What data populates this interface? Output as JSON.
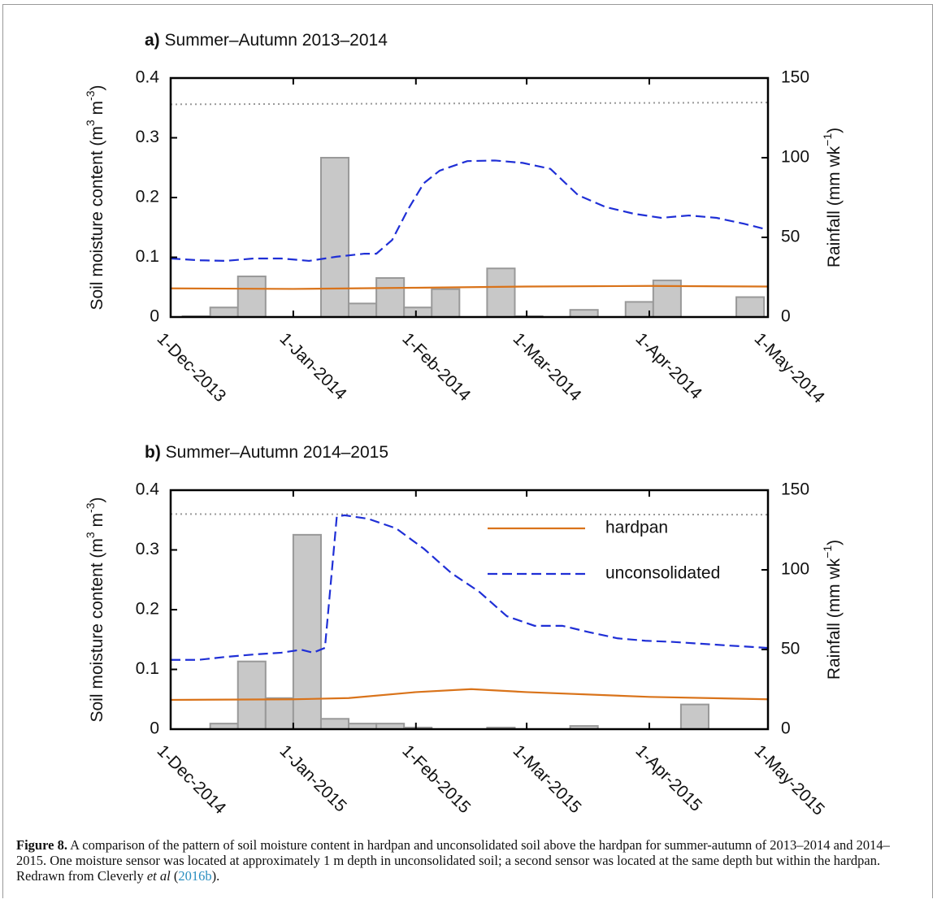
{
  "chart_data": [
    {
      "type": "combo",
      "panel": "a)",
      "title": "Summer–Autumn 2013–2014",
      "ylabel": [
        "Soil moisture content (m",
        "3",
        " m",
        "-3",
        ")"
      ],
      "y2label": [
        "Rainfall (mm wk",
        "−1",
        ")"
      ],
      "xlim": [
        "2013-12-01",
        "2014-05-01"
      ],
      "xticks": [
        {
          "value": "2013-12-01",
          "label": "1-Dec-2013"
        },
        {
          "value": "2014-01-01",
          "label": "1-Jan-2014"
        },
        {
          "value": "2014-02-01",
          "label": "1-Feb-2014"
        },
        {
          "value": "2014-03-01",
          "label": "1-Mar-2014"
        },
        {
          "value": "2014-04-01",
          "label": "1-Apr-2014"
        },
        {
          "value": "2014-05-01",
          "label": "1-May-2014"
        }
      ],
      "ylim": [
        0,
        0.4
      ],
      "yticks": [
        0,
        0.1,
        0.2,
        0.3,
        0.4
      ],
      "y2lim": [
        0,
        150
      ],
      "y2ticks": [
        0,
        50,
        100,
        150
      ],
      "rainfall": {
        "axis": "y2",
        "color": "#c8c8c8",
        "bins": [
          "2013-12-04",
          "2013-12-11",
          "2013-12-18",
          "2013-12-25",
          "2014-01-01",
          "2014-01-08",
          "2014-01-15",
          "2014-01-22",
          "2014-01-29",
          "2014-02-05",
          "2014-02-12",
          "2014-02-19",
          "2014-02-26",
          "2014-03-05",
          "2014-03-12",
          "2014-03-19",
          "2014-03-26",
          "2014-04-02",
          "2014-04-09",
          "2014-04-16",
          "2014-04-23",
          "2014-04-30"
        ],
        "values": [
          0.5,
          6,
          25.5,
          0,
          0,
          100,
          8.5,
          24.5,
          6,
          17.5,
          0,
          30.5,
          0.5,
          0,
          4.5,
          0,
          9.5,
          23,
          0,
          0,
          12.5
        ]
      },
      "reference_line": {
        "color": "#999999",
        "x": [
          "2013-12-01",
          "2014-05-01"
        ],
        "values": [
          0.356,
          0.359
        ]
      },
      "series": [
        {
          "color": "#d9731a",
          "x": [
            "2013-12-01",
            "2014-01-01",
            "2014-02-01",
            "2014-03-01",
            "2014-04-01",
            "2014-05-01"
          ],
          "values": [
            0.048,
            0.047,
            0.049,
            0.051,
            0.052,
            0.051
          ]
        },
        {
          "color": "#1f2fd6",
          "dashed": true,
          "x": [
            "2013-12-01",
            "2013-12-08",
            "2013-12-15",
            "2013-12-22",
            "2013-12-29",
            "2014-01-05",
            "2014-01-12",
            "2014-01-19",
            "2014-01-22",
            "2014-01-26",
            "2014-01-30",
            "2014-02-03",
            "2014-02-07",
            "2014-02-14",
            "2014-02-21",
            "2014-02-28",
            "2014-03-07",
            "2014-03-14",
            "2014-03-21",
            "2014-03-28",
            "2014-04-04",
            "2014-04-11",
            "2014-04-18",
            "2014-04-25",
            "2014-05-01"
          ],
          "values": [
            0.098,
            0.095,
            0.094,
            0.098,
            0.098,
            0.094,
            0.101,
            0.106,
            0.106,
            0.129,
            0.18,
            0.224,
            0.245,
            0.261,
            0.262,
            0.258,
            0.248,
            0.204,
            0.184,
            0.173,
            0.166,
            0.17,
            0.166,
            0.156,
            0.146
          ]
        }
      ]
    },
    {
      "type": "combo",
      "panel": "b)",
      "title": "Summer–Autumn 2014–2015",
      "ylabel": [
        "Soil moisture content (m",
        "3",
        " m",
        "-3",
        ")"
      ],
      "y2label": [
        "Rainfall (mm wk",
        "−1",
        ")"
      ],
      "xlim": [
        "2014-12-01",
        "2015-05-01"
      ],
      "xticks": [
        {
          "value": "2014-12-01",
          "label": "1-Dec-2014"
        },
        {
          "value": "2015-01-01",
          "label": "1-Jan-2015"
        },
        {
          "value": "2015-02-01",
          "label": "1-Feb-2015"
        },
        {
          "value": "2015-03-01",
          "label": "1-Mar-2015"
        },
        {
          "value": "2015-04-01",
          "label": "1-Apr-2015"
        },
        {
          "value": "2015-05-01",
          "label": "1-May-2015"
        }
      ],
      "ylim": [
        0,
        0.4
      ],
      "yticks": [
        0,
        0.1,
        0.2,
        0.3,
        0.4
      ],
      "y2lim": [
        0,
        150
      ],
      "y2ticks": [
        0,
        50,
        100,
        150
      ],
      "legend": "upper right",
      "rainfall": {
        "axis": "y2",
        "color": "#c8c8c8",
        "bins": [
          "2014-12-04",
          "2014-12-11",
          "2014-12-18",
          "2014-12-25",
          "2015-01-01",
          "2015-01-08",
          "2015-01-15",
          "2015-01-22",
          "2015-01-29",
          "2015-02-05",
          "2015-02-12",
          "2015-02-19",
          "2015-02-26",
          "2015-03-05",
          "2015-03-12",
          "2015-03-19",
          "2015-03-26",
          "2015-04-02",
          "2015-04-09",
          "2015-04-16",
          "2015-04-23",
          "2015-04-30"
        ],
        "values": [
          0,
          3.5,
          42.5,
          19.5,
          122,
          6.5,
          3.5,
          3.5,
          1,
          0,
          0,
          1,
          0,
          0,
          2,
          0,
          0,
          0,
          15.5,
          0,
          0
        ]
      },
      "reference_line": {
        "color": "#999999",
        "x": [
          "2014-12-01",
          "2015-05-01"
        ],
        "values": [
          0.36,
          0.359
        ]
      },
      "series": [
        {
          "name": "hardpan",
          "color": "#d9731a",
          "x": [
            "2014-12-01",
            "2015-01-01",
            "2015-01-15",
            "2015-02-01",
            "2015-02-15",
            "2015-03-01",
            "2015-04-01",
            "2015-05-01"
          ],
          "values": [
            0.049,
            0.05,
            0.052,
            0.062,
            0.067,
            0.062,
            0.054,
            0.05
          ]
        },
        {
          "name": "unconsolidated",
          "color": "#1f2fd6",
          "dashed": true,
          "x": [
            "2014-12-01",
            "2014-12-08",
            "2014-12-15",
            "2014-12-22",
            "2014-12-29",
            "2015-01-03",
            "2015-01-06",
            "2015-01-09",
            "2015-01-12",
            "2015-01-14",
            "2015-01-20",
            "2015-01-27",
            "2015-02-03",
            "2015-02-10",
            "2015-02-17",
            "2015-02-24",
            "2015-03-03",
            "2015-03-10",
            "2015-03-17",
            "2015-03-24",
            "2015-03-31",
            "2015-04-07",
            "2015-04-14",
            "2015-04-21",
            "2015-05-01"
          ],
          "values": [
            0.116,
            0.116,
            0.121,
            0.125,
            0.128,
            0.133,
            0.128,
            0.136,
            0.356,
            0.358,
            0.352,
            0.336,
            0.302,
            0.261,
            0.23,
            0.189,
            0.173,
            0.173,
            0.162,
            0.152,
            0.148,
            0.146,
            0.143,
            0.14,
            0.136
          ]
        }
      ]
    }
  ],
  "caption": {
    "label": "Figure 8.",
    "text": " A comparison of the pattern of soil moisture content in hardpan and unconsolidated soil above the hardpan for summer-autumn of 2013–2014 and 2014–2015. One moisture sensor was located at approximately 1 m depth in unconsolidated soil; a second sensor was located at the same depth but within the hardpan. Redrawn from Cleverly ",
    "italic": "et al",
    "open": " (",
    "link": "2016b",
    "close": ")."
  }
}
